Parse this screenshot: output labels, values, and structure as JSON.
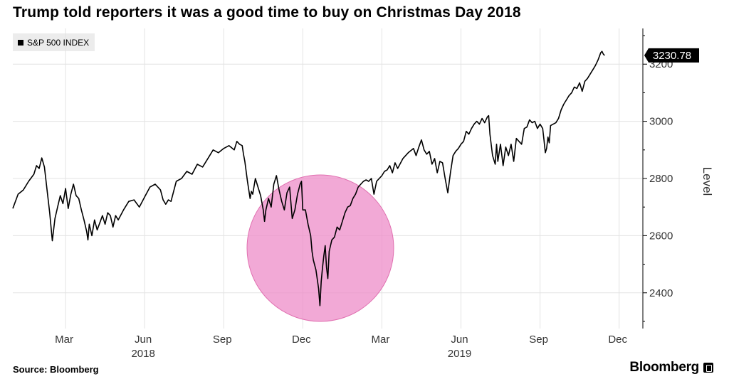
{
  "title": "Trump told reporters it was a good time to buy on Christmas Day 2018",
  "legend": {
    "label": "S&P 500 INDEX"
  },
  "source": "Source: Bloomberg",
  "brand": "Bloomberg",
  "colors": {
    "line": "#000000",
    "grid": "#e3e3e3",
    "highlight": "#ee8cc8",
    "highlight_edge": "#e070b0",
    "tag_bg": "#000000",
    "tag_text": "#ffffff"
  },
  "chart_data": {
    "type": "line",
    "title": "Trump told reporters it was a good time to buy on Christmas Day 2018",
    "series_name": "S&P 500 INDEX",
    "xlabel": "",
    "ylabel": "Level",
    "ylim": [
      2275,
      3325
    ],
    "y_ticks": [
      2400,
      2600,
      2800,
      3000,
      3200
    ],
    "x_ticks": [
      {
        "x": 2.0,
        "label": "Mar"
      },
      {
        "x": 5.0,
        "label": "Jun"
      },
      {
        "x": 8.0,
        "label": "Sep"
      },
      {
        "x": 11.0,
        "label": "Dec"
      },
      {
        "x": 14.0,
        "label": "Mar"
      },
      {
        "x": 17.0,
        "label": "Jun"
      },
      {
        "x": 20.0,
        "label": "Sep"
      },
      {
        "x": 23.0,
        "label": "Dec"
      }
    ],
    "year_labels": [
      {
        "x": 5.0,
        "label": "2018"
      },
      {
        "x": 17.0,
        "label": "2019"
      }
    ],
    "last_value": "3230.78",
    "points": [
      [
        0.0,
        2695
      ],
      [
        0.2,
        2745
      ],
      [
        0.4,
        2760
      ],
      [
        0.6,
        2790
      ],
      [
        0.8,
        2815
      ],
      [
        0.9,
        2845
      ],
      [
        1.0,
        2835
      ],
      [
        1.1,
        2872
      ],
      [
        1.2,
        2840
      ],
      [
        1.3,
        2760
      ],
      [
        1.4,
        2680
      ],
      [
        1.5,
        2582
      ],
      [
        1.6,
        2660
      ],
      [
        1.7,
        2700
      ],
      [
        1.8,
        2740
      ],
      [
        1.9,
        2712
      ],
      [
        2.0,
        2765
      ],
      [
        2.1,
        2695
      ],
      [
        2.2,
        2745
      ],
      [
        2.3,
        2780
      ],
      [
        2.4,
        2740
      ],
      [
        2.5,
        2730
      ],
      [
        2.6,
        2690
      ],
      [
        2.7,
        2655
      ],
      [
        2.8,
        2615
      ],
      [
        2.85,
        2585
      ],
      [
        2.9,
        2640
      ],
      [
        3.0,
        2600
      ],
      [
        3.1,
        2655
      ],
      [
        3.2,
        2620
      ],
      [
        3.3,
        2645
      ],
      [
        3.4,
        2670
      ],
      [
        3.5,
        2640
      ],
      [
        3.6,
        2680
      ],
      [
        3.7,
        2670
      ],
      [
        3.8,
        2630
      ],
      [
        3.9,
        2670
      ],
      [
        4.0,
        2655
      ],
      [
        4.2,
        2690
      ],
      [
        4.4,
        2720
      ],
      [
        4.6,
        2725
      ],
      [
        4.8,
        2700
      ],
      [
        5.0,
        2735
      ],
      [
        5.2,
        2770
      ],
      [
        5.4,
        2780
      ],
      [
        5.6,
        2760
      ],
      [
        5.7,
        2725
      ],
      [
        5.8,
        2710
      ],
      [
        5.9,
        2725
      ],
      [
        6.0,
        2720
      ],
      [
        6.2,
        2790
      ],
      [
        6.4,
        2800
      ],
      [
        6.6,
        2825
      ],
      [
        6.8,
        2815
      ],
      [
        7.0,
        2850
      ],
      [
        7.2,
        2840
      ],
      [
        7.4,
        2870
      ],
      [
        7.6,
        2900
      ],
      [
        7.8,
        2890
      ],
      [
        8.0,
        2905
      ],
      [
        8.2,
        2915
      ],
      [
        8.4,
        2900
      ],
      [
        8.5,
        2930
      ],
      [
        8.6,
        2920
      ],
      [
        8.7,
        2915
      ],
      [
        8.75,
        2885
      ],
      [
        8.8,
        2860
      ],
      [
        8.9,
        2790
      ],
      [
        9.0,
        2730
      ],
      [
        9.05,
        2755
      ],
      [
        9.1,
        2745
      ],
      [
        9.2,
        2800
      ],
      [
        9.3,
        2770
      ],
      [
        9.4,
        2740
      ],
      [
        9.5,
        2690
      ],
      [
        9.55,
        2650
      ],
      [
        9.6,
        2690
      ],
      [
        9.7,
        2730
      ],
      [
        9.8,
        2700
      ],
      [
        9.9,
        2780
      ],
      [
        10.0,
        2810
      ],
      [
        10.1,
        2760
      ],
      [
        10.2,
        2720
      ],
      [
        10.3,
        2690
      ],
      [
        10.4,
        2750
      ],
      [
        10.5,
        2770
      ],
      [
        10.6,
        2660
      ],
      [
        10.7,
        2690
      ],
      [
        10.8,
        2745
      ],
      [
        10.9,
        2780
      ],
      [
        10.95,
        2790
      ],
      [
        11.0,
        2690
      ],
      [
        11.1,
        2690
      ],
      [
        11.2,
        2640
      ],
      [
        11.3,
        2600
      ],
      [
        11.35,
        2545
      ],
      [
        11.4,
        2515
      ],
      [
        11.5,
        2480
      ],
      [
        11.6,
        2415
      ],
      [
        11.65,
        2355
      ],
      [
        11.7,
        2440
      ],
      [
        11.75,
        2490
      ],
      [
        11.8,
        2530
      ],
      [
        11.85,
        2565
      ],
      [
        11.9,
        2490
      ],
      [
        11.95,
        2450
      ],
      [
        12.0,
        2545
      ],
      [
        12.1,
        2585
      ],
      [
        12.2,
        2595
      ],
      [
        12.3,
        2630
      ],
      [
        12.4,
        2620
      ],
      [
        12.5,
        2650
      ],
      [
        12.6,
        2680
      ],
      [
        12.7,
        2700
      ],
      [
        12.8,
        2705
      ],
      [
        12.9,
        2730
      ],
      [
        13.0,
        2745
      ],
      [
        13.1,
        2770
      ],
      [
        13.2,
        2780
      ],
      [
        13.3,
        2790
      ],
      [
        13.4,
        2795
      ],
      [
        13.5,
        2790
      ],
      [
        13.6,
        2800
      ],
      [
        13.7,
        2745
      ],
      [
        13.8,
        2790
      ],
      [
        13.9,
        2800
      ],
      [
        14.0,
        2810
      ],
      [
        14.1,
        2825
      ],
      [
        14.2,
        2830
      ],
      [
        14.3,
        2845
      ],
      [
        14.4,
        2820
      ],
      [
        14.5,
        2855
      ],
      [
        14.6,
        2835
      ],
      [
        14.8,
        2870
      ],
      [
        15.0,
        2890
      ],
      [
        15.2,
        2905
      ],
      [
        15.3,
        2880
      ],
      [
        15.4,
        2910
      ],
      [
        15.5,
        2935
      ],
      [
        15.6,
        2900
      ],
      [
        15.7,
        2885
      ],
      [
        15.8,
        2895
      ],
      [
        15.9,
        2850
      ],
      [
        16.0,
        2870
      ],
      [
        16.1,
        2820
      ],
      [
        16.2,
        2860
      ],
      [
        16.3,
        2855
      ],
      [
        16.4,
        2800
      ],
      [
        16.5,
        2750
      ],
      [
        16.6,
        2820
      ],
      [
        16.7,
        2880
      ],
      [
        16.8,
        2895
      ],
      [
        16.9,
        2905
      ],
      [
        17.0,
        2920
      ],
      [
        17.1,
        2930
      ],
      [
        17.2,
        2965
      ],
      [
        17.3,
        2955
      ],
      [
        17.4,
        2975
      ],
      [
        17.5,
        2990
      ],
      [
        17.6,
        3000
      ],
      [
        17.7,
        2990
      ],
      [
        17.8,
        3010
      ],
      [
        17.9,
        2995
      ],
      [
        18.0,
        3015
      ],
      [
        18.05,
        3020
      ],
      [
        18.1,
        2955
      ],
      [
        18.2,
        2880
      ],
      [
        18.3,
        2850
      ],
      [
        18.35,
        2920
      ],
      [
        18.4,
        2860
      ],
      [
        18.5,
        2920
      ],
      [
        18.6,
        2845
      ],
      [
        18.7,
        2910
      ],
      [
        18.8,
        2880
      ],
      [
        18.9,
        2920
      ],
      [
        19.0,
        2860
      ],
      [
        19.1,
        2940
      ],
      [
        19.2,
        2930
      ],
      [
        19.3,
        2920
      ],
      [
        19.4,
        2975
      ],
      [
        19.5,
        2980
      ],
      [
        19.6,
        3005
      ],
      [
        19.7,
        2995
      ],
      [
        19.8,
        3000
      ],
      [
        19.9,
        2975
      ],
      [
        20.0,
        2990
      ],
      [
        20.1,
        2975
      ],
      [
        20.15,
        2935
      ],
      [
        20.2,
        2890
      ],
      [
        20.25,
        2905
      ],
      [
        20.3,
        2945
      ],
      [
        20.35,
        2925
      ],
      [
        20.4,
        2985
      ],
      [
        20.5,
        2990
      ],
      [
        20.6,
        2995
      ],
      [
        20.7,
        3010
      ],
      [
        20.8,
        3040
      ],
      [
        20.9,
        3060
      ],
      [
        21.0,
        3075
      ],
      [
        21.1,
        3090
      ],
      [
        21.2,
        3100
      ],
      [
        21.3,
        3120
      ],
      [
        21.4,
        3115
      ],
      [
        21.5,
        3135
      ],
      [
        21.6,
        3105
      ],
      [
        21.7,
        3140
      ],
      [
        21.8,
        3150
      ],
      [
        21.9,
        3165
      ],
      [
        22.0,
        3180
      ],
      [
        22.1,
        3195
      ],
      [
        22.2,
        3215
      ],
      [
        22.3,
        3240
      ],
      [
        22.35,
        3245
      ],
      [
        22.4,
        3235
      ],
      [
        22.45,
        3230.78
      ]
    ]
  }
}
